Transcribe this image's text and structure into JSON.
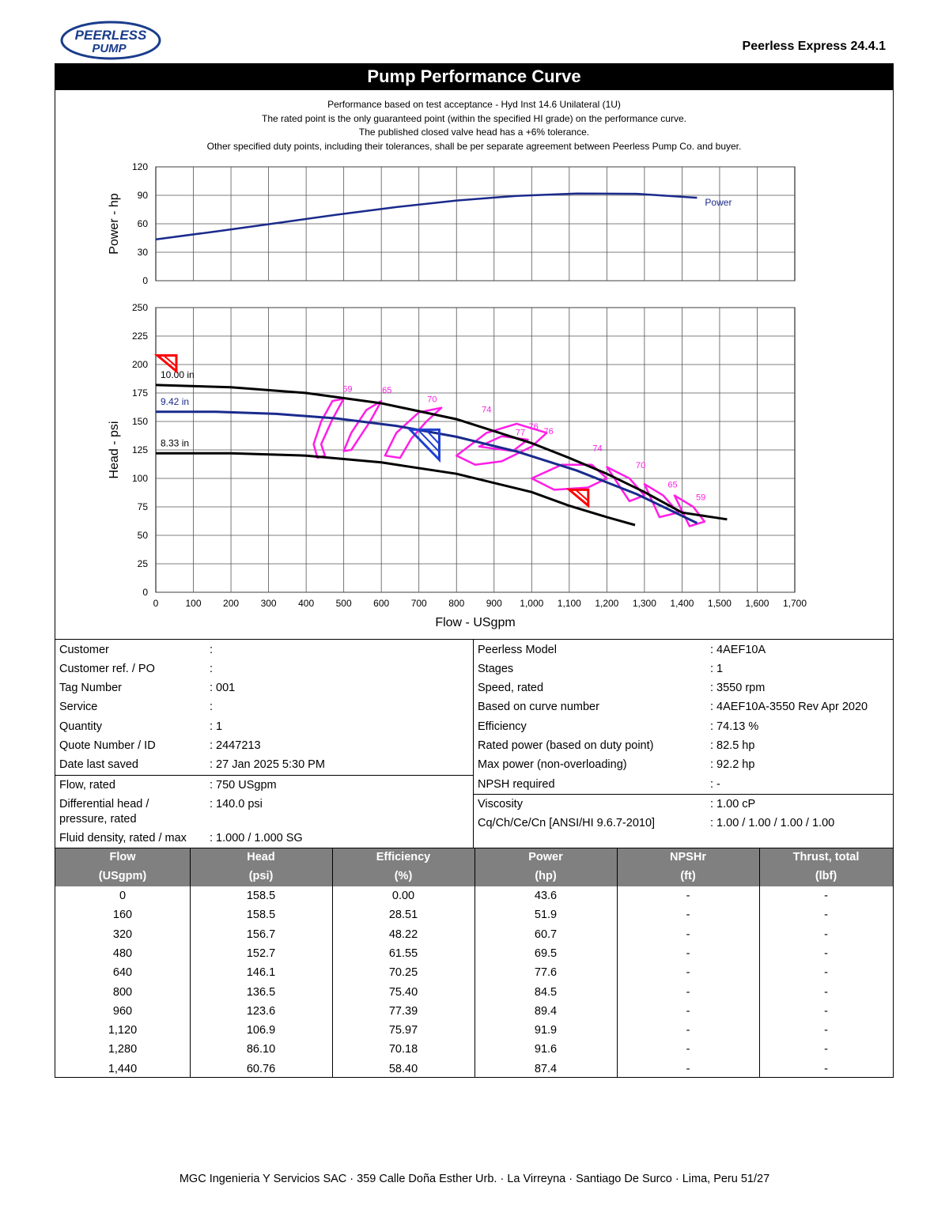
{
  "header": {
    "logo_text_top": "PEERLESS",
    "logo_text_bottom": "PUMP",
    "version": "Peerless Express 24.4.1",
    "title": "Pump Performance Curve"
  },
  "notes": [
    "Performance based on test acceptance - Hyd Inst 14.6 Unilateral (1U)",
    "The rated point is the only guaranteed point (within the specified HI grade) on the performance curve.",
    "The published closed valve head has a +6% tolerance.",
    "Other specified duty points, including their tolerances, shall be per separate agreement between Peerless Pump Co. and buyer."
  ],
  "chart_data": [
    {
      "type": "line",
      "ylabel": "Power - hp",
      "ylim": [
        0,
        120
      ],
      "yticks": [
        0,
        30,
        60,
        90,
        120
      ],
      "xlim": [
        0,
        1700
      ],
      "grid": true,
      "series": [
        {
          "name": "Power",
          "color": "#1a2a8c",
          "x": [
            0,
            160,
            320,
            480,
            640,
            800,
            960,
            1120,
            1280,
            1440
          ],
          "y": [
            43.6,
            51.9,
            60.7,
            69.5,
            77.6,
            84.5,
            89.4,
            91.9,
            91.6,
            87.4
          ]
        }
      ]
    },
    {
      "type": "line",
      "ylabel": "Head - psi",
      "xlabel": "Flow - USgpm",
      "ylim": [
        0,
        250
      ],
      "yticks": [
        0,
        25,
        50,
        75,
        100,
        125,
        150,
        175,
        200,
        225,
        250
      ],
      "xlim": [
        0,
        1700
      ],
      "xticks": [
        "0",
        "100",
        "200",
        "300",
        "400",
        "500",
        "600",
        "700",
        "800",
        "900",
        "1,000",
        "1,100",
        "1,200",
        "1,300",
        "1,400",
        "1,500",
        "1,600",
        "1,700"
      ],
      "grid": true,
      "series": [
        {
          "name": "10.00 in",
          "color": "#000000",
          "x": [
            0,
            200,
            400,
            600,
            800,
            1000,
            1100,
            1200,
            1300,
            1400,
            1520
          ],
          "y": [
            182,
            180,
            175,
            166,
            152,
            131,
            118,
            104,
            88,
            70,
            64
          ]
        },
        {
          "name": "9.42 in",
          "color": "#1a2a8c",
          "x": [
            0,
            160,
            320,
            480,
            640,
            800,
            960,
            1120,
            1280,
            1440
          ],
          "y": [
            158.5,
            158.5,
            156.7,
            152.7,
            146.1,
            136.5,
            123.6,
            106.9,
            86.1,
            60.76
          ]
        },
        {
          "name": "8.33 in",
          "color": "#000000",
          "x": [
            0,
            200,
            400,
            600,
            800,
            1000,
            1100,
            1200,
            1275
          ],
          "y": [
            122,
            122,
            120,
            114,
            104,
            88,
            76,
            66,
            59
          ]
        }
      ],
      "efficiency_labels": [
        {
          "label": "59",
          "x": 510,
          "y": 176
        },
        {
          "label": "65",
          "x": 615,
          "y": 175
        },
        {
          "label": "70",
          "x": 735,
          "y": 167
        },
        {
          "label": "74",
          "x": 880,
          "y": 158
        },
        {
          "label": "76",
          "x": 1005,
          "y": 143
        },
        {
          "label": "76",
          "x": 1045,
          "y": 139
        },
        {
          "label": "74",
          "x": 1175,
          "y": 124
        },
        {
          "label": "70",
          "x": 1290,
          "y": 109
        },
        {
          "label": "65",
          "x": 1375,
          "y": 92
        },
        {
          "label": "59",
          "x": 1450,
          "y": 81
        },
        {
          "label": "77",
          "x": 970,
          "y": 138
        }
      ],
      "rated_point": {
        "x": 750,
        "y": 140
      }
    }
  ],
  "details_left": [
    {
      "label": "Customer",
      "value": ":"
    },
    {
      "label": "Customer ref. / PO",
      "value": ":"
    },
    {
      "label": "Tag Number",
      "value": ": 001"
    },
    {
      "label": "Service",
      "value": ":"
    },
    {
      "label": "Quantity",
      "value": ": 1"
    },
    {
      "label": "Quote Number / ID",
      "value": ": 2447213"
    },
    {
      "label": "Date last saved",
      "value": ": 27 Jan 2025 5:30 PM"
    }
  ],
  "details_left2": {
    "flow_label": "Flow, rated",
    "flow_value": ": 750 USgpm",
    "head_label_1": "Differential head /",
    "head_label_2": "pressure, rated",
    "head_value": ": 140.0 psi",
    "density_label": "Fluid density, rated / max",
    "density_value": ": 1.000 / 1.000 SG"
  },
  "details_right": [
    {
      "label": "Peerless Model",
      "value": ": 4AEF10A"
    },
    {
      "label": "Stages",
      "value": ": 1"
    },
    {
      "label": "Speed, rated",
      "value": ": 3550 rpm"
    },
    {
      "label": "Based on curve number",
      "value": ": 4AEF10A-3550 Rev Apr 2020"
    },
    {
      "label": "Efficiency",
      "value": ": 74.13 %"
    },
    {
      "label": "Rated power (based on duty point)",
      "value": ": 82.5 hp"
    },
    {
      "label": "Max power (non-overloading)",
      "value": ": 92.2 hp"
    },
    {
      "label": "NPSH required",
      "value": ": -"
    }
  ],
  "details_right2": [
    {
      "label": "Viscosity",
      "value": ": 1.00 cP"
    },
    {
      "label": "Cq/Ch/Ce/Cn  [ANSI/HI 9.6.7-2010]",
      "value": ": 1.00 / 1.00 / 1.00 / 1.00"
    }
  ],
  "table": {
    "headers": [
      [
        "Flow",
        "(USgpm)"
      ],
      [
        "Head",
        "(psi)"
      ],
      [
        "Efficiency",
        "(%)"
      ],
      [
        "Power",
        "(hp)"
      ],
      [
        "NPSHr",
        "(ft)"
      ],
      [
        "Thrust, total",
        "(lbf)"
      ]
    ],
    "rows": [
      [
        "0",
        "158.5",
        "0.00",
        "43.6",
        "-",
        "-"
      ],
      [
        "160",
        "158.5",
        "28.51",
        "51.9",
        "-",
        "-"
      ],
      [
        "320",
        "156.7",
        "48.22",
        "60.7",
        "-",
        "-"
      ],
      [
        "480",
        "152.7",
        "61.55",
        "69.5",
        "-",
        "-"
      ],
      [
        "640",
        "146.1",
        "70.25",
        "77.6",
        "-",
        "-"
      ],
      [
        "800",
        "136.5",
        "75.40",
        "84.5",
        "-",
        "-"
      ],
      [
        "960",
        "123.6",
        "77.39",
        "89.4",
        "-",
        "-"
      ],
      [
        "1,120",
        "106.9",
        "75.97",
        "91.9",
        "-",
        "-"
      ],
      [
        "1,280",
        "86.10",
        "70.18",
        "91.6",
        "-",
        "-"
      ],
      [
        "1,440",
        "60.76",
        "58.40",
        "87.4",
        "-",
        "-"
      ]
    ]
  },
  "footer": "MGC Ingenieria Y Servicios SAC · 359 Calle Doña Esther Urb. ·  La Virreyna · Santiago De Surco ·  Lima, Peru 51/27"
}
